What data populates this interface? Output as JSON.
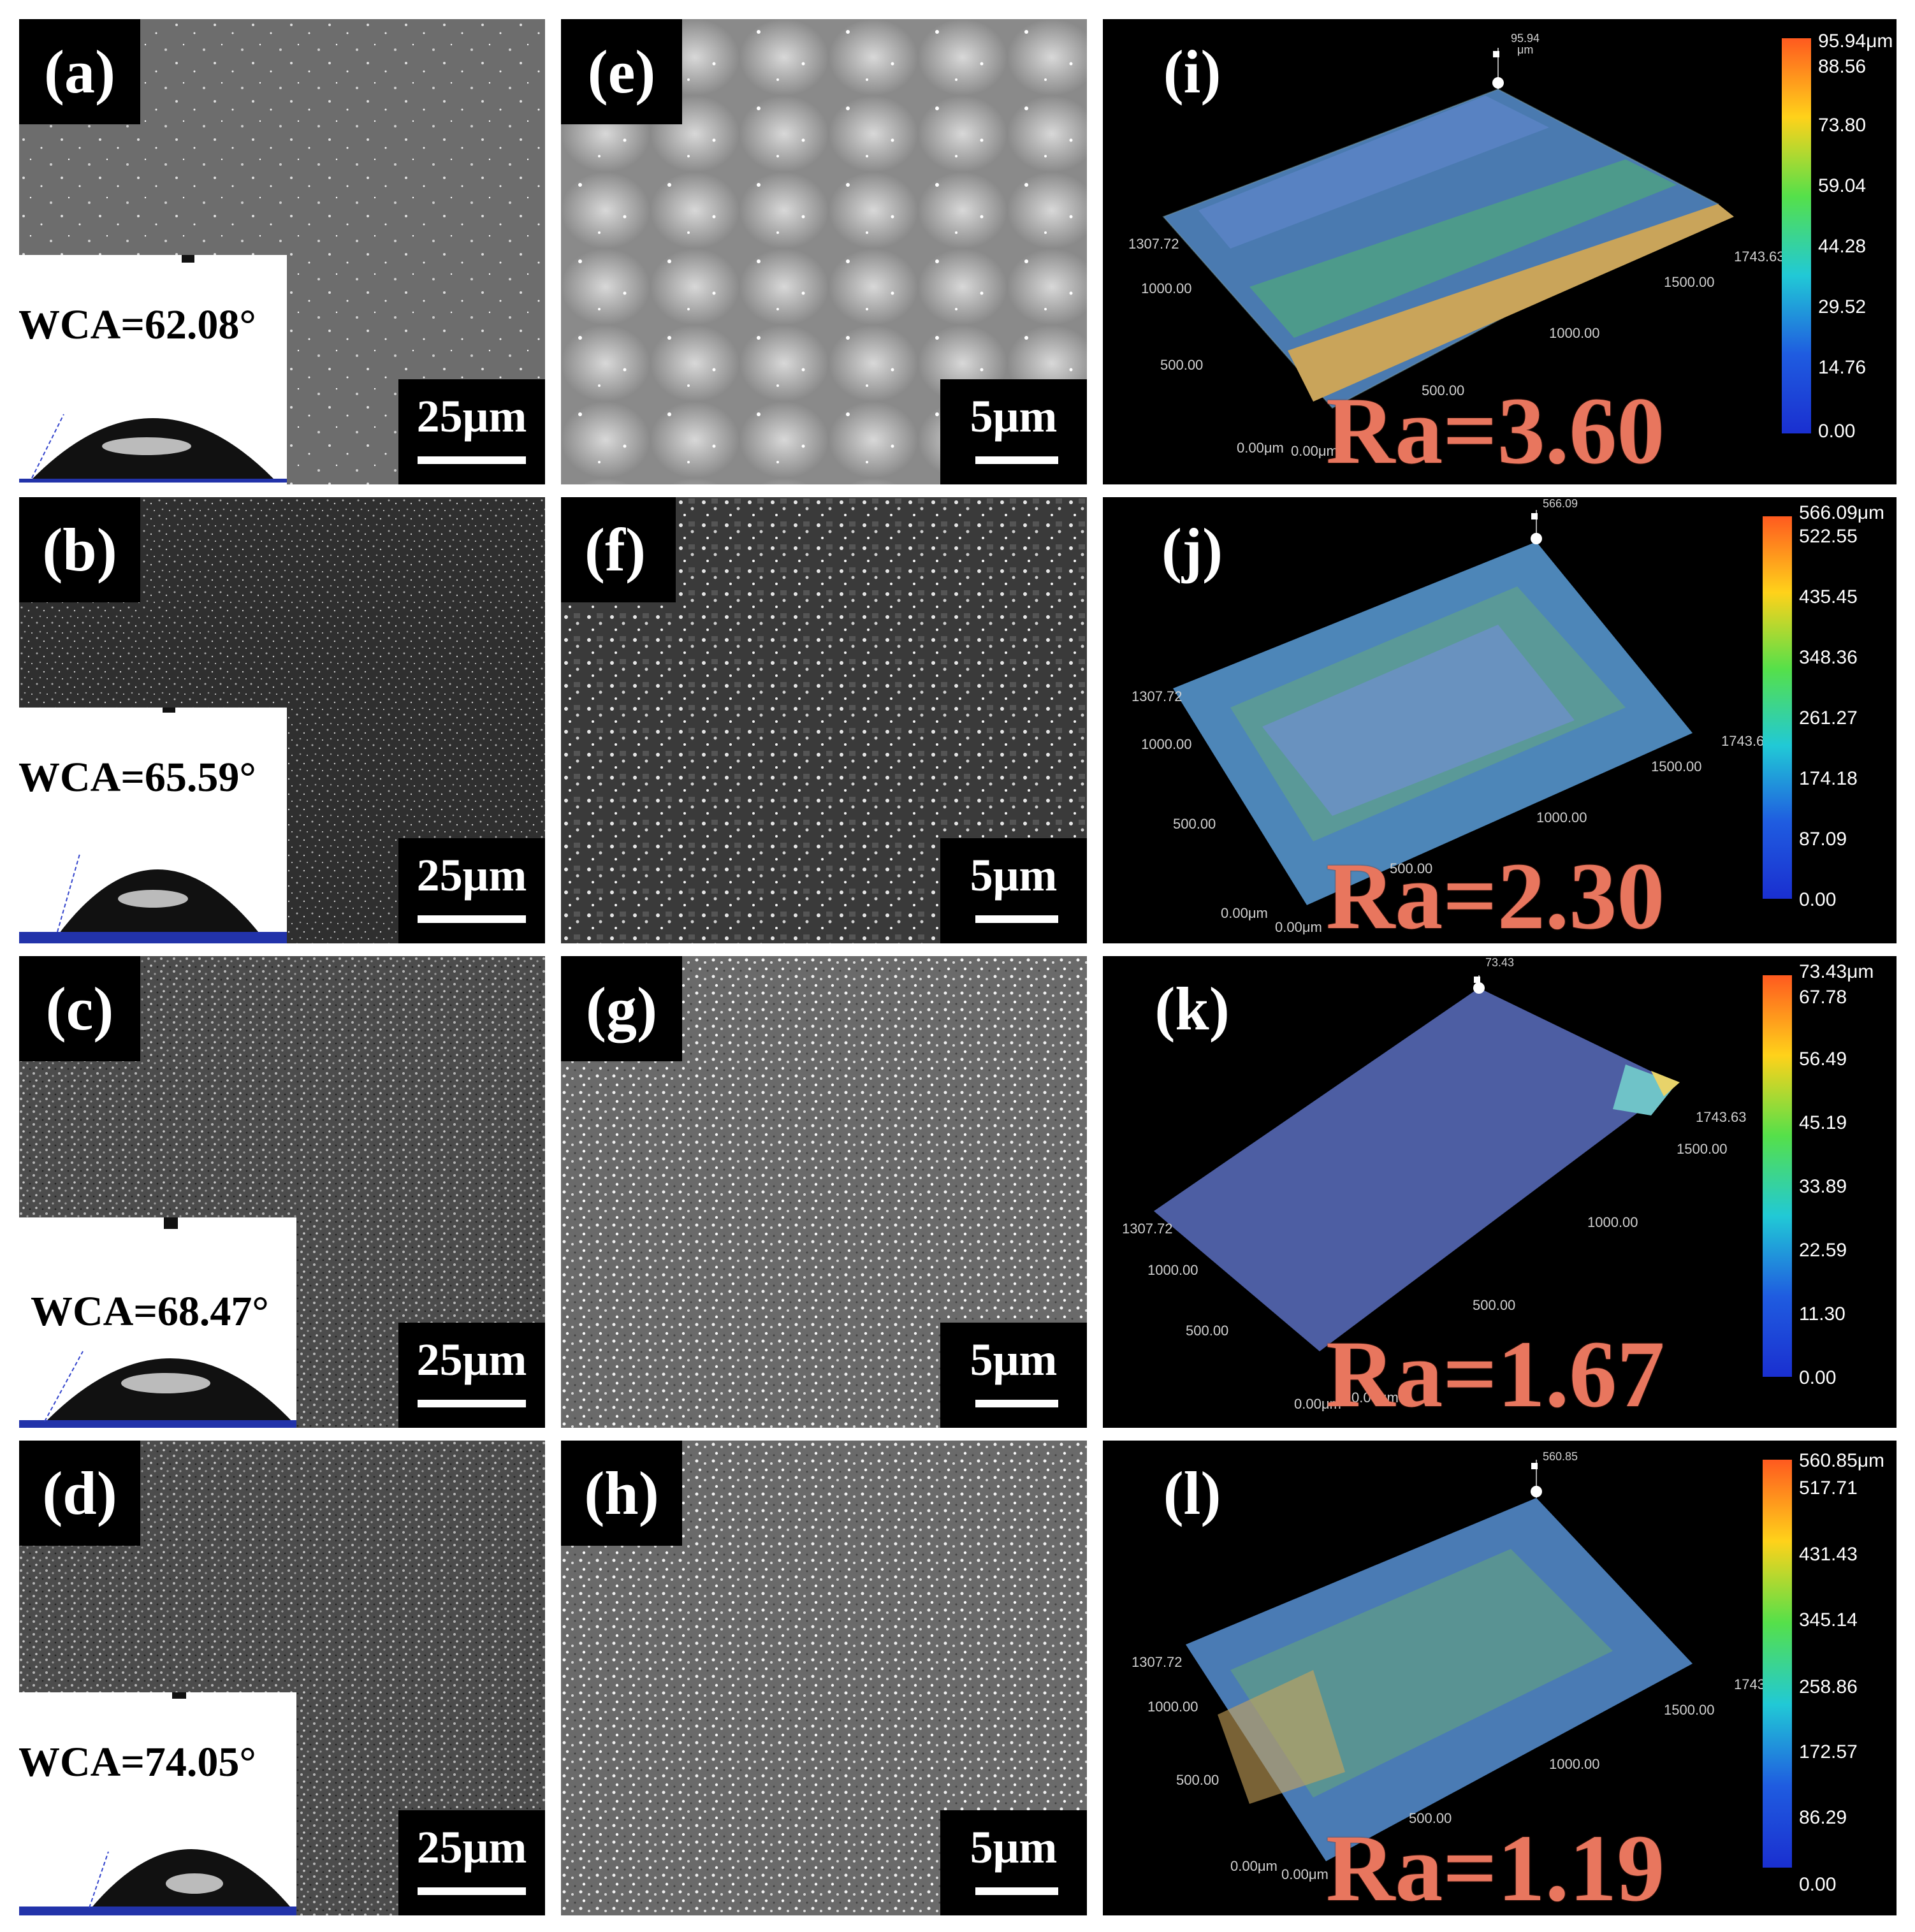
{
  "wca_panels": [
    {
      "label": "(a)",
      "scale": "25μm",
      "wca": "WCA=62.08°"
    },
    {
      "label": "(b)",
      "scale": "25μm",
      "wca": "WCA=65.59°"
    },
    {
      "label": "(c)",
      "scale": "25μm",
      "wca": "WCA=68.47°"
    },
    {
      "label": "(d)",
      "scale": "25μm",
      "wca": "WCA=74.05°"
    }
  ],
  "sem_panels": [
    {
      "label": "(e)",
      "scale": "5μm"
    },
    {
      "label": "(f)",
      "scale": "5μm"
    },
    {
      "label": "(g)",
      "scale": "5μm"
    },
    {
      "label": "(h)",
      "scale": "5μm"
    }
  ],
  "map_panels": [
    {
      "label": "(i)",
      "ra": "Ra=3.60",
      "peak": "95.94",
      "colorbar": [
        "95.94μm",
        "88.56",
        "73.80",
        "59.04",
        "44.28",
        "29.52",
        "14.76",
        "0.00"
      ]
    },
    {
      "label": "(j)",
      "ra": "Ra=2.30",
      "peak": "566.09",
      "colorbar": [
        "566.09μm",
        "522.55",
        "435.45",
        "348.36",
        "261.27",
        "174.18",
        "87.09",
        "0.00"
      ]
    },
    {
      "label": "(k)",
      "ra": "Ra=1.67",
      "peak": "73.43",
      "colorbar": [
        "73.43μm",
        "67.78",
        "56.49",
        "45.19",
        "33.89",
        "22.59",
        "11.30",
        "0.00"
      ]
    },
    {
      "label": "(l)",
      "ra": "Ra=1.19",
      "peak": "560.85",
      "colorbar": [
        "560.85μm",
        "517.71",
        "431.43",
        "345.14",
        "258.86",
        "172.57",
        "86.29",
        "0.00"
      ]
    }
  ],
  "axis_labels": {
    "y_max": "1307.72",
    "y_1000": "1000.00",
    "y_500": "500.00",
    "origin_y": "0.00μm",
    "origin_x": "0.00μm",
    "x_500": "500.00",
    "x_1000": "1000.00",
    "x_1500": "1500.00",
    "x_max": "1743.63",
    "z_unit": "μm"
  }
}
